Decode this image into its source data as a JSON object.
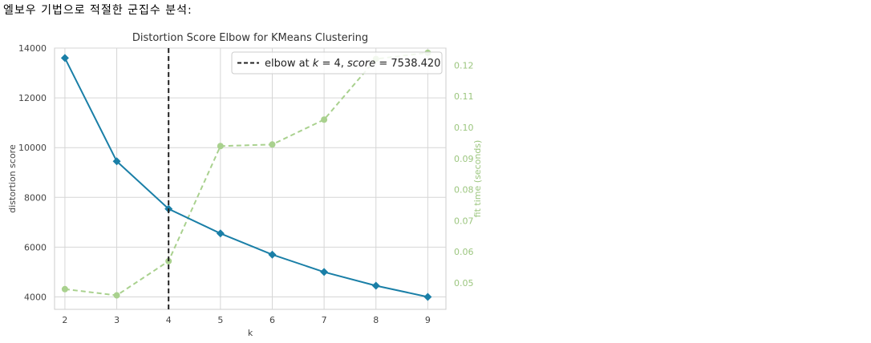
{
  "heading": "엘보우 기법으로 적절한 군집수 분석:",
  "chart_data": {
    "type": "line",
    "title": "Distortion Score Elbow for KMeans Clustering",
    "xlabel": "k",
    "ylabel": "distortion score",
    "ylabel2": "fit time (seconds)",
    "x": [
      2,
      3,
      4,
      5,
      6,
      7,
      8,
      9
    ],
    "xlim": [
      1.8,
      9.35
    ],
    "ylim": [
      3500,
      14000
    ],
    "ylim2": [
      0.0415,
      0.1255
    ],
    "yticks": [
      4000,
      6000,
      8000,
      10000,
      12000,
      14000
    ],
    "yticks2": [
      0.05,
      0.06,
      0.07,
      0.08,
      0.09,
      0.1,
      0.11,
      0.12
    ],
    "series": [
      {
        "values": [
          13600,
          9450,
          7538.42,
          6550,
          5700,
          5000,
          4450,
          4000
        ],
        "color": "#1a7fa7"
      },
      {
        "values": [
          0.048,
          0.046,
          0.057,
          0.094,
          0.0945,
          0.1025,
          0.122,
          0.124
        ],
        "color": "#a9d18e"
      }
    ],
    "elbow": {
      "k": 4,
      "label_prefix": "elbow at ",
      "label_k": "k",
      "label_eq1": " = 4, ",
      "label_score": "score",
      "label_eq2": " = 7538.420"
    },
    "legend_position": "top-right",
    "grid": true
  }
}
